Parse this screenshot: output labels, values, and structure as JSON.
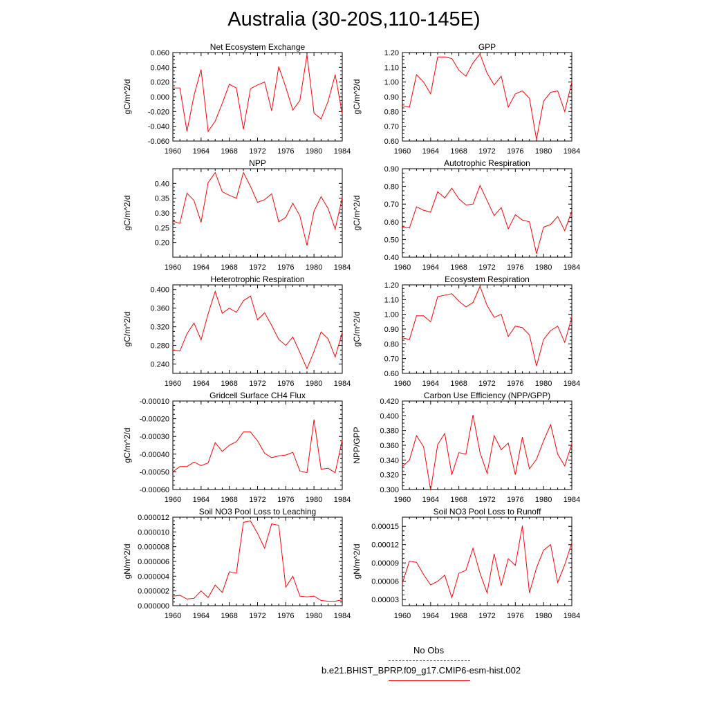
{
  "title": "Australia (30-20S,110-145E)",
  "colors": {
    "model": "#ff0000",
    "obs": "#5a5ad6",
    "axis": "#000000"
  },
  "legend": {
    "obs_label": "No Obs",
    "model_label": "b.e21.BHIST_BPRP.f09_g17.CMIP6-esm-hist.002"
  },
  "chart_data": [
    {
      "type": "line",
      "title": "Net Ecosystem Exchange",
      "ylabel": "gC/m^2/d",
      "xlim": [
        1960,
        1984
      ],
      "ylim": [
        -0.06,
        0.06
      ],
      "xticks": [
        1960,
        1964,
        1968,
        1972,
        1976,
        1980,
        1984
      ],
      "xtick_labels": [
        "1960",
        "1964",
        "1968",
        "1972",
        "1976",
        "1980",
        "1984"
      ],
      "yticks": [
        -0.06,
        -0.04,
        -0.02,
        0.0,
        0.02,
        0.04,
        0.06
      ],
      "ytick_labels": [
        "-0.060",
        "-0.040",
        "-0.020",
        "0.000",
        "0.020",
        "0.040",
        "0.060"
      ],
      "series": [
        {
          "x": [
            1960,
            1961,
            1962,
            1963,
            1964,
            1965,
            1966,
            1967,
            1968,
            1969,
            1970,
            1971,
            1972,
            1973,
            1974,
            1975,
            1976,
            1977,
            1978,
            1979,
            1980,
            1981,
            1982,
            1983,
            1984
          ],
          "y": [
            0.012,
            0.012,
            -0.047,
            0.002,
            0.037,
            -0.047,
            -0.033,
            -0.009,
            0.017,
            0.012,
            -0.044,
            0.011,
            0.016,
            0.02,
            -0.019,
            0.041,
            0.013,
            -0.018,
            -0.005,
            0.057,
            -0.022,
            -0.03,
            -0.006,
            0.03,
            -0.023
          ]
        }
      ]
    },
    {
      "type": "line",
      "title": "GPP",
      "ylabel": "gC/m^2/d",
      "xlim": [
        1960,
        1984
      ],
      "ylim": [
        0.6,
        1.2
      ],
      "xticks": [
        1960,
        1964,
        1968,
        1972,
        1976,
        1980,
        1984
      ],
      "xtick_labels": [
        "1960",
        "1964",
        "1968",
        "1972",
        "1976",
        "1980",
        "1984"
      ],
      "yticks": [
        0.6,
        0.7,
        0.8,
        0.9,
        1.0,
        1.1,
        1.2
      ],
      "ytick_labels": [
        "0.60",
        "0.70",
        "0.80",
        "0.90",
        "1.00",
        "1.10",
        "1.20"
      ],
      "series": [
        {
          "x": [
            1960,
            1961,
            1962,
            1963,
            1964,
            1965,
            1966,
            1967,
            1968,
            1969,
            1970,
            1971,
            1972,
            1973,
            1974,
            1975,
            1976,
            1977,
            1978,
            1979,
            1980,
            1981,
            1982,
            1983,
            1984
          ],
          "y": [
            0.84,
            0.83,
            1.05,
            1.0,
            0.92,
            1.17,
            1.17,
            1.16,
            1.08,
            1.04,
            1.13,
            1.19,
            1.06,
            0.98,
            1.04,
            0.83,
            0.92,
            0.94,
            0.89,
            0.61,
            0.87,
            0.93,
            0.94,
            0.8,
            1.0
          ]
        }
      ]
    },
    {
      "type": "line",
      "title": "NPP",
      "ylabel": "gC/m^2/d",
      "xlim": [
        1960,
        1984
      ],
      "ylim": [
        0.15,
        0.45
      ],
      "xticks": [
        1960,
        1964,
        1968,
        1972,
        1976,
        1980,
        1984
      ],
      "xtick_labels": [
        "1960",
        "1964",
        "1968",
        "1972",
        "1976",
        "1980",
        "1984"
      ],
      "yticks": [
        0.2,
        0.25,
        0.3,
        0.35,
        0.4
      ],
      "ytick_labels": [
        "0.20",
        "0.25",
        "0.30",
        "0.35",
        "0.40"
      ],
      "series": [
        {
          "x": [
            1960,
            1961,
            1962,
            1963,
            1964,
            1965,
            1966,
            1967,
            1968,
            1969,
            1970,
            1971,
            1972,
            1973,
            1974,
            1975,
            1976,
            1977,
            1978,
            1979,
            1980,
            1981,
            1982,
            1983,
            1984
          ],
          "y": [
            0.272,
            0.265,
            0.367,
            0.342,
            0.268,
            0.403,
            0.437,
            0.372,
            0.36,
            0.35,
            0.437,
            0.39,
            0.336,
            0.345,
            0.365,
            0.27,
            0.285,
            0.333,
            0.29,
            0.19,
            0.306,
            0.355,
            0.315,
            0.245,
            0.352
          ]
        }
      ]
    },
    {
      "type": "line",
      "title": "Autotrophic Respiration",
      "ylabel": "gC/m^2/d",
      "xlim": [
        1960,
        1984
      ],
      "ylim": [
        0.4,
        0.9
      ],
      "xticks": [
        1960,
        1964,
        1968,
        1972,
        1976,
        1980,
        1984
      ],
      "xtick_labels": [
        "1960",
        "1964",
        "1968",
        "1972",
        "1976",
        "1980",
        "1984"
      ],
      "yticks": [
        0.4,
        0.5,
        0.6,
        0.7,
        0.8,
        0.9
      ],
      "ytick_labels": [
        "0.40",
        "0.50",
        "0.60",
        "0.70",
        "0.80",
        "0.90"
      ],
      "series": [
        {
          "x": [
            1960,
            1961,
            1962,
            1963,
            1964,
            1965,
            1966,
            1967,
            1968,
            1969,
            1970,
            1971,
            1972,
            1973,
            1974,
            1975,
            1976,
            1977,
            1978,
            1979,
            1980,
            1981,
            1982,
            1983,
            1984
          ],
          "y": [
            0.57,
            0.565,
            0.685,
            0.665,
            0.655,
            0.77,
            0.735,
            0.79,
            0.73,
            0.695,
            0.7,
            0.805,
            0.72,
            0.635,
            0.68,
            0.56,
            0.64,
            0.61,
            0.6,
            0.42,
            0.57,
            0.585,
            0.63,
            0.55,
            0.66
          ]
        }
      ]
    },
    {
      "type": "line",
      "title": "Heterotrophic Respiration",
      "ylabel": "gC/m^2/d",
      "xlim": [
        1960,
        1984
      ],
      "ylim": [
        0.22,
        0.41
      ],
      "xticks": [
        1960,
        1964,
        1968,
        1972,
        1976,
        1980,
        1984
      ],
      "xtick_labels": [
        "1960",
        "1964",
        "1968",
        "1972",
        "1976",
        "1980",
        "1984"
      ],
      "yticks": [
        0.24,
        0.28,
        0.32,
        0.36,
        0.4
      ],
      "ytick_labels": [
        "0.240",
        "0.280",
        "0.320",
        "0.360",
        "0.400"
      ],
      "series": [
        {
          "x": [
            1960,
            1961,
            1962,
            1963,
            1964,
            1965,
            1966,
            1967,
            1968,
            1969,
            1970,
            1971,
            1972,
            1973,
            1974,
            1975,
            1976,
            1977,
            1978,
            1979,
            1980,
            1981,
            1982,
            1983,
            1984
          ],
          "y": [
            0.27,
            0.268,
            0.305,
            0.328,
            0.292,
            0.348,
            0.396,
            0.349,
            0.36,
            0.351,
            0.376,
            0.386,
            0.335,
            0.35,
            0.323,
            0.293,
            0.28,
            0.298,
            0.265,
            0.23,
            0.267,
            0.309,
            0.294,
            0.255,
            0.308
          ]
        }
      ]
    },
    {
      "type": "line",
      "title": "Ecosystem Respiration",
      "ylabel": "gC/m^2/d",
      "xlim": [
        1960,
        1984
      ],
      "ylim": [
        0.6,
        1.2
      ],
      "xticks": [
        1960,
        1964,
        1968,
        1972,
        1976,
        1980,
        1984
      ],
      "xtick_labels": [
        "1960",
        "1964",
        "1968",
        "1972",
        "1976",
        "1980",
        "1984"
      ],
      "yticks": [
        0.6,
        0.7,
        0.8,
        0.9,
        1.0,
        1.1,
        1.2
      ],
      "ytick_labels": [
        "0.60",
        "0.70",
        "0.80",
        "0.90",
        "1.00",
        "1.10",
        "1.20"
      ],
      "series": [
        {
          "x": [
            1960,
            1961,
            1962,
            1963,
            1964,
            1965,
            1966,
            1967,
            1968,
            1969,
            1970,
            1971,
            1972,
            1973,
            1974,
            1975,
            1976,
            1977,
            1978,
            1979,
            1980,
            1981,
            1982,
            1983,
            1984
          ],
          "y": [
            0.84,
            0.83,
            0.99,
            0.99,
            0.95,
            1.12,
            1.13,
            1.14,
            1.09,
            1.05,
            1.08,
            1.19,
            1.06,
            0.98,
            1.0,
            0.85,
            0.92,
            0.91,
            0.86,
            0.65,
            0.83,
            0.89,
            0.92,
            0.81,
            0.98
          ]
        }
      ]
    },
    {
      "type": "line",
      "title": "Gridcell Surface CH4 Flux",
      "ylabel": "gC/m^2/d",
      "xlim": [
        1960,
        1984
      ],
      "ylim": [
        -0.0006,
        -0.0001
      ],
      "xticks": [
        1960,
        1964,
        1968,
        1972,
        1976,
        1980,
        1984
      ],
      "xtick_labels": [
        "1960",
        "1964",
        "1968",
        "1972",
        "1976",
        "1980",
        "1984"
      ],
      "yticks": [
        -0.0006,
        -0.0005,
        -0.0004,
        -0.0003,
        -0.0002,
        -0.0001
      ],
      "ytick_labels": [
        "-0.00060",
        "-0.00050",
        "-0.00040",
        "-0.00030",
        "-0.00020",
        "-0.00010"
      ],
      "series": [
        {
          "x": [
            1960,
            1961,
            1962,
            1963,
            1964,
            1965,
            1966,
            1967,
            1968,
            1969,
            1970,
            1971,
            1972,
            1973,
            1974,
            1975,
            1976,
            1977,
            1978,
            1979,
            1980,
            1981,
            1982,
            1983,
            1984
          ],
          "y": [
            -0.0005,
            -0.00047,
            -0.00047,
            -0.000445,
            -0.000465,
            -0.00045,
            -0.000335,
            -0.000385,
            -0.00035,
            -0.00033,
            -0.000275,
            -0.000275,
            -0.000325,
            -0.000395,
            -0.00042,
            -0.00041,
            -0.000405,
            -0.00039,
            -0.000495,
            -0.000505,
            -0.000205,
            -0.000485,
            -0.00048,
            -0.000505,
            -0.00032
          ]
        }
      ]
    },
    {
      "type": "line",
      "title": "Carbon Use Efficiency (NPP/GPP)",
      "ylabel": "NPP/GPP",
      "xlim": [
        1960,
        1984
      ],
      "ylim": [
        0.3,
        0.42
      ],
      "xticks": [
        1960,
        1964,
        1968,
        1972,
        1976,
        1980,
        1984
      ],
      "xtick_labels": [
        "1960",
        "1964",
        "1968",
        "1972",
        "1976",
        "1980",
        "1984"
      ],
      "yticks": [
        0.3,
        0.32,
        0.34,
        0.36,
        0.38,
        0.4,
        0.42
      ],
      "ytick_labels": [
        "0.300",
        "0.320",
        "0.340",
        "0.360",
        "0.380",
        "0.400",
        "0.420"
      ],
      "series": [
        {
          "x": [
            1960,
            1961,
            1962,
            1963,
            1964,
            1965,
            1966,
            1967,
            1968,
            1969,
            1970,
            1971,
            1972,
            1973,
            1974,
            1975,
            1976,
            1977,
            1978,
            1979,
            1980,
            1981,
            1982,
            1983,
            1984
          ],
          "y": [
            0.331,
            0.34,
            0.373,
            0.358,
            0.299,
            0.361,
            0.376,
            0.32,
            0.35,
            0.348,
            0.401,
            0.35,
            0.322,
            0.373,
            0.354,
            0.363,
            0.32,
            0.371,
            0.328,
            0.341,
            0.366,
            0.388,
            0.348,
            0.332,
            0.362
          ]
        }
      ]
    },
    {
      "type": "line",
      "title": "Soil NO3 Pool Loss to Leaching",
      "ylabel": "gN/m^2/d",
      "xlim": [
        1960,
        1984
      ],
      "ylim": [
        0,
        1.2e-05
      ],
      "xticks": [
        1960,
        1964,
        1968,
        1972,
        1976,
        1980,
        1984
      ],
      "xtick_labels": [
        "1960",
        "1964",
        "1968",
        "1972",
        "1976",
        "1980",
        "1984"
      ],
      "yticks": [
        0,
        2e-06,
        4e-06,
        6e-06,
        8e-06,
        1e-05,
        1.2e-05
      ],
      "ytick_labels": [
        "0.000000",
        "0.000002",
        "0.000004",
        "0.000006",
        "0.000008",
        "0.000010",
        "0.000012"
      ],
      "series": [
        {
          "x": [
            1960,
            1961,
            1962,
            1963,
            1964,
            1965,
            1966,
            1967,
            1968,
            1969,
            1970,
            1971,
            1972,
            1973,
            1974,
            1975,
            1976,
            1977,
            1978,
            1979,
            1980,
            1981,
            1982,
            1983,
            1984
          ],
          "y": [
            1.3e-06,
            1.4e-06,
            9e-07,
            1e-06,
            2e-06,
            1.1e-06,
            2.8e-06,
            1.8e-06,
            4.6e-06,
            4.4e-06,
            1.13e-05,
            1.15e-05,
            9.8e-06,
            7.8e-06,
            1.11e-05,
            1.09e-05,
            2.5e-06,
            4e-06,
            1.3e-06,
            1.2e-06,
            1.3e-06,
            7e-07,
            6e-07,
            6e-07,
            8e-07
          ]
        }
      ]
    },
    {
      "type": "line",
      "title": "Soil NO3 Pool Loss to Runoff",
      "ylabel": "gN/m^2/d",
      "xlim": [
        1960,
        1984
      ],
      "ylim": [
        2e-05,
        0.000165
      ],
      "xticks": [
        1960,
        1964,
        1968,
        1972,
        1976,
        1980,
        1984
      ],
      "xtick_labels": [
        "1960",
        "1964",
        "1968",
        "1972",
        "1976",
        "1980",
        "1984"
      ],
      "yticks": [
        3e-05,
        6e-05,
        9e-05,
        0.00012,
        0.00015
      ],
      "ytick_labels": [
        "0.00003",
        "0.00006",
        "0.00009",
        "0.00012",
        "0.00015"
      ],
      "series": [
        {
          "x": [
            1960,
            1961,
            1962,
            1963,
            1964,
            1965,
            1966,
            1967,
            1968,
            1969,
            1970,
            1971,
            1972,
            1973,
            1974,
            1975,
            1976,
            1977,
            1978,
            1979,
            1980,
            1981,
            1982,
            1983,
            1984
          ],
          "y": [
            5.7e-05,
            9.3e-05,
            9.1e-05,
            7.1e-05,
            5.4e-05,
            6e-05,
            7e-05,
            3.3e-05,
            7.3e-05,
            7.8e-05,
            0.000114,
            7.3e-05,
            4.1e-05,
            0.000105,
            5.3e-05,
            9.7e-05,
            8.6e-05,
            0.000151,
            4.1e-05,
            8.2e-05,
            0.000111,
            0.00012,
            5.8e-05,
            8.7e-05,
            0.000123
          ]
        }
      ]
    }
  ]
}
